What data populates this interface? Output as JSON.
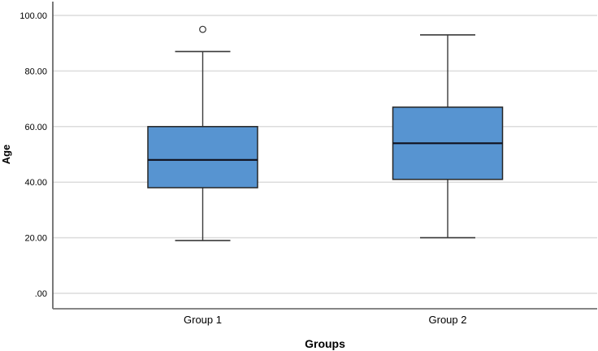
{
  "chart_data": {
    "type": "boxplot",
    "title": "",
    "xlabel": "Groups",
    "ylabel": "Age",
    "categories": [
      "Group 1",
      "Group 2"
    ],
    "series": [
      {
        "name": "Group 1",
        "whisker_low": 19,
        "q1": 38,
        "median": 48,
        "q3": 60,
        "whisker_high": 87,
        "outliers": [
          95
        ]
      },
      {
        "name": "Group 2",
        "whisker_low": 20,
        "q1": 41,
        "median": 54,
        "q3": 67,
        "whisker_high": 93,
        "outliers": []
      }
    ],
    "ylim": [
      0,
      100
    ],
    "yticks": {
      "values": [
        0,
        20,
        40,
        60,
        80,
        100
      ],
      "labels": [
        ".00",
        "20.00",
        "40.00",
        "60.00",
        "80.00",
        "100.00"
      ]
    },
    "grid": "horizontal",
    "legend": "none",
    "colors": {
      "box_fill": "#5794D1",
      "box_stroke": "#262626",
      "median_stroke": "#10101c",
      "whisker_stroke": "#3a3a3a",
      "outlier_stroke": "#333333",
      "gridline": "#dcdcdc",
      "y_axis_line": "#4d4d4d",
      "x_axis_line": "#757575",
      "text": "#000000"
    }
  }
}
